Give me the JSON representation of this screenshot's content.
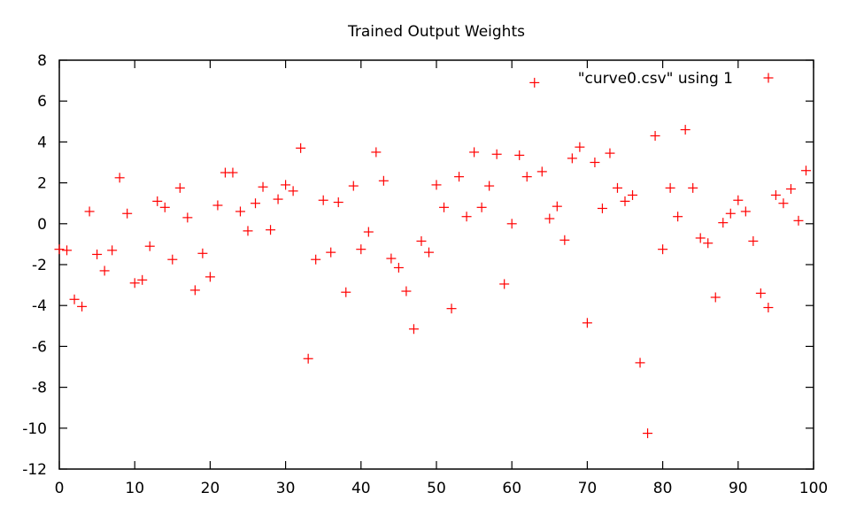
{
  "chart_data": {
    "type": "scatter",
    "title": "Trained Output Weights",
    "xlabel": "",
    "ylabel": "",
    "xlim": [
      0,
      100
    ],
    "ylim": [
      -12,
      8
    ],
    "x_ticks": [
      "0",
      "10",
      "20",
      "30",
      "40",
      "50",
      "60",
      "70",
      "80",
      "90",
      "100"
    ],
    "y_ticks": [
      "-12",
      "-10",
      "-8",
      "-6",
      "-4",
      "-2",
      "0",
      "2",
      "4",
      "6",
      "8"
    ],
    "grid": false,
    "legend_position": "top-right",
    "marker": "+",
    "color": "#ff0000",
    "series": [
      {
        "name": "\"curve0.csv\" using 1",
        "x": [
          0,
          1,
          2,
          3,
          4,
          5,
          6,
          7,
          8,
          9,
          10,
          11,
          12,
          13,
          14,
          15,
          16,
          17,
          18,
          19,
          20,
          21,
          22,
          23,
          24,
          25,
          26,
          27,
          28,
          29,
          30,
          31,
          32,
          33,
          34,
          35,
          36,
          37,
          38,
          39,
          40,
          41,
          42,
          43,
          44,
          45,
          46,
          47,
          48,
          49,
          50,
          51,
          52,
          53,
          54,
          55,
          56,
          57,
          58,
          59,
          60,
          61,
          62,
          63,
          64,
          65,
          66,
          67,
          68,
          69,
          70,
          71,
          72,
          73,
          74,
          75,
          76,
          77,
          78,
          79,
          80,
          81,
          82,
          83,
          84,
          85,
          86,
          87,
          88,
          89,
          90,
          91,
          92,
          93,
          94,
          95,
          96,
          97,
          98,
          99
        ],
        "y": [
          -1.25,
          -1.3,
          -3.7,
          -4.05,
          0.6,
          -1.5,
          -2.3,
          -1.3,
          2.25,
          0.5,
          -2.9,
          -2.75,
          -1.1,
          1.1,
          0.8,
          -1.75,
          1.75,
          0.3,
          -3.25,
          -1.45,
          -2.6,
          0.9,
          2.5,
          2.5,
          0.6,
          -0.35,
          1.0,
          1.8,
          -0.3,
          1.2,
          1.9,
          1.6,
          3.7,
          -6.6,
          -1.75,
          1.15,
          -1.4,
          1.05,
          -3.35,
          1.85,
          -1.25,
          -0.4,
          3.5,
          2.1,
          -1.7,
          -2.15,
          -3.3,
          -5.15,
          -0.85,
          -1.4,
          1.9,
          0.8,
          -4.15,
          2.3,
          0.35,
          3.5,
          0.8,
          1.85,
          3.4,
          -2.95,
          0.0,
          3.35,
          2.3,
          6.9,
          2.55,
          0.25,
          0.85,
          -0.8,
          3.2,
          3.75,
          -4.85,
          3.0,
          0.75,
          3.45,
          1.75,
          1.1,
          1.4,
          -6.8,
          -10.25,
          4.3,
          -1.25,
          1.75,
          0.35,
          4.6,
          1.75,
          -0.7,
          -0.95,
          -3.6,
          0.05,
          0.5,
          1.15,
          0.6,
          -0.85,
          -3.4,
          -4.1,
          1.4,
          1.0,
          1.7,
          0.15,
          2.6
        ]
      }
    ]
  }
}
